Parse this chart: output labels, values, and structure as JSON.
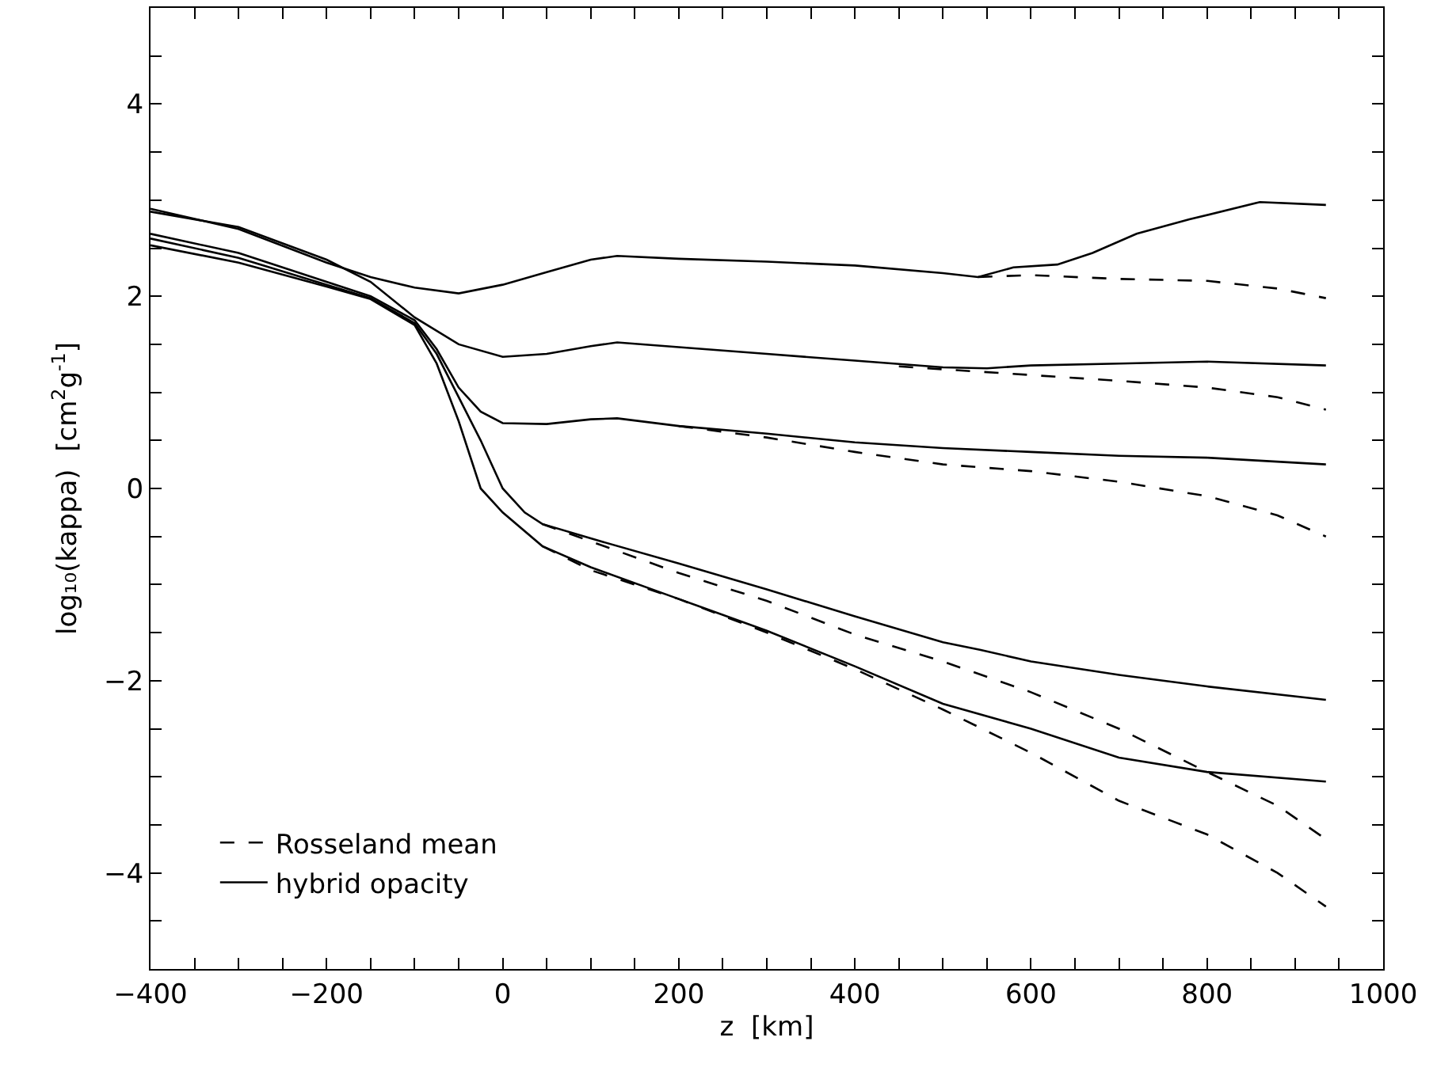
{
  "chart_data": {
    "type": "line",
    "xlabel": "z  [km]",
    "ylabel": "log₁₀(kappa)  [cm$^{2}$g$^{-1}$]",
    "xlim": [
      -400,
      1000
    ],
    "ylim": [
      -5,
      5
    ],
    "xticks": [
      {
        "value": -400,
        "label": "−400"
      },
      {
        "value": -350,
        "label": null
      },
      {
        "value": -300,
        "label": null
      },
      {
        "value": -250,
        "label": null
      },
      {
        "value": -200,
        "label": "−200"
      },
      {
        "value": -150,
        "label": null
      },
      {
        "value": -100,
        "label": null
      },
      {
        "value": -50,
        "label": null
      },
      0,
      {
        "value": 50,
        "label": null
      },
      {
        "value": 100,
        "label": null
      },
      {
        "value": 150,
        "label": null
      },
      200,
      {
        "value": 250,
        "label": null
      },
      {
        "value": 300,
        "label": null
      },
      {
        "value": 350,
        "label": null
      },
      400,
      {
        "value": 450,
        "label": null
      },
      {
        "value": 500,
        "label": null
      },
      {
        "value": 550,
        "label": null
      },
      600,
      {
        "value": 650,
        "label": null
      },
      {
        "value": 700,
        "label": null
      },
      {
        "value": 750,
        "label": null
      },
      800,
      {
        "value": 850,
        "label": null
      },
      {
        "value": 900,
        "label": null
      },
      {
        "value": 950,
        "label": null
      },
      1000
    ],
    "yticks": [
      {
        "value": -4.5,
        "label": null
      },
      {
        "value": -4,
        "label": "−4"
      },
      {
        "value": -3.5,
        "label": null
      },
      {
        "value": -3,
        "label": null
      },
      {
        "value": -2.5,
        "label": null
      },
      {
        "value": -2,
        "label": "−2"
      },
      {
        "value": -1.5,
        "label": null
      },
      {
        "value": -1,
        "label": null
      },
      {
        "value": -0.5,
        "label": null
      },
      0,
      {
        "value": 0.5,
        "label": null
      },
      {
        "value": 1,
        "label": null
      },
      {
        "value": 1.5,
        "label": null
      },
      2,
      {
        "value": 2.5,
        "label": null
      },
      {
        "value": 3,
        "label": null
      },
      {
        "value": 3.5,
        "label": null
      },
      4,
      {
        "value": 4.5,
        "label": null
      }
    ],
    "grid": false,
    "legend": "bottom left",
    "marker": "none",
    "series": [
      {
        "name": "Rosseland mean",
        "color": "#000000",
        "line_style": "dashed",
        "x": [
          540,
          600,
          700,
          800,
          880,
          935
        ],
        "values": [
          2.2,
          2.22,
          2.18,
          2.16,
          2.08,
          1.98
        ]
      },
      {
        "name": "hybrid opacity",
        "color": "#000000",
        "line_style": "solid",
        "x": [
          -400,
          -300,
          -200,
          -150,
          -100,
          -50,
          0,
          50,
          100,
          130,
          200,
          300,
          400,
          500,
          540,
          580,
          630,
          670,
          720,
          780,
          860,
          935
        ],
        "values": [
          2.91,
          2.7,
          2.35,
          2.2,
          2.09,
          2.03,
          2.12,
          2.25,
          2.38,
          2.42,
          2.39,
          2.36,
          2.32,
          2.24,
          2.2,
          2.3,
          2.33,
          2.45,
          2.65,
          2.8,
          2.98,
          2.95
        ]
      },
      {
        "color": "#000000",
        "line_style": "dashed",
        "x": [
          450,
          500,
          600,
          700,
          800,
          880,
          935
        ],
        "values": [
          1.27,
          1.24,
          1.18,
          1.12,
          1.05,
          0.95,
          0.82
        ]
      },
      {
        "color": "#000000",
        "line_style": "solid",
        "x": [
          -400,
          -300,
          -200,
          -150,
          -100,
          -50,
          0,
          50,
          100,
          130,
          200,
          300,
          400,
          500,
          550,
          600,
          700,
          800,
          935
        ],
        "values": [
          2.88,
          2.72,
          2.38,
          2.15,
          1.78,
          1.5,
          1.37,
          1.4,
          1.48,
          1.52,
          1.47,
          1.4,
          1.33,
          1.26,
          1.25,
          1.28,
          1.3,
          1.32,
          1.28
        ]
      },
      {
        "color": "#000000",
        "line_style": "dashed",
        "x": [
          200,
          300,
          400,
          500,
          600,
          700,
          800,
          880,
          935
        ],
        "values": [
          0.65,
          0.53,
          0.38,
          0.25,
          0.18,
          0.07,
          -0.08,
          -0.28,
          -0.5
        ]
      },
      {
        "color": "#000000",
        "line_style": "solid",
        "x": [
          -400,
          -300,
          -200,
          -150,
          -100,
          -75,
          -50,
          -25,
          0,
          50,
          100,
          130,
          200,
          300,
          400,
          500,
          600,
          700,
          800,
          935
        ],
        "values": [
          2.65,
          2.45,
          2.15,
          2.0,
          1.75,
          1.45,
          1.05,
          0.8,
          0.68,
          0.67,
          0.72,
          0.73,
          0.65,
          0.57,
          0.48,
          0.42,
          0.38,
          0.34,
          0.32,
          0.25
        ]
      },
      {
        "color": "#000000",
        "line_style": "dashed",
        "x": [
          45,
          100,
          200,
          300,
          400,
          500,
          600,
          700,
          800,
          880,
          935
        ],
        "values": [
          -0.37,
          -0.55,
          -0.88,
          -1.17,
          -1.52,
          -1.8,
          -2.12,
          -2.5,
          -2.95,
          -3.3,
          -3.65
        ]
      },
      {
        "color": "#000000",
        "line_style": "solid",
        "x": [
          -400,
          -300,
          -200,
          -150,
          -100,
          -75,
          -50,
          -25,
          0,
          25,
          45,
          100,
          200,
          300,
          400,
          500,
          543,
          600,
          700,
          800,
          935
        ],
        "values": [
          2.6,
          2.4,
          2.12,
          1.98,
          1.72,
          1.4,
          0.95,
          0.5,
          0.0,
          -0.25,
          -0.37,
          -0.52,
          -0.78,
          -1.05,
          -1.33,
          -1.6,
          -1.68,
          -1.8,
          -1.94,
          -2.06,
          -2.2
        ]
      },
      {
        "color": "#000000",
        "line_style": "dashed",
        "x": [
          45,
          100,
          200,
          300,
          400,
          500,
          600,
          700,
          800,
          880,
          935
        ],
        "values": [
          -0.6,
          -0.85,
          -1.15,
          -1.5,
          -1.88,
          -2.3,
          -2.75,
          -3.25,
          -3.6,
          -4.0,
          -4.35
        ]
      },
      {
        "color": "#000000",
        "line_style": "solid",
        "x": [
          -400,
          -300,
          -200,
          -150,
          -100,
          -75,
          -50,
          -25,
          0,
          45,
          100,
          200,
          300,
          400,
          500,
          600,
          700,
          800,
          935
        ],
        "values": [
          2.53,
          2.35,
          2.1,
          1.97,
          1.7,
          1.3,
          0.7,
          0.0,
          -0.25,
          -0.6,
          -0.82,
          -1.15,
          -1.48,
          -1.85,
          -2.24,
          -2.5,
          -2.8,
          -2.95,
          -3.05
        ]
      }
    ]
  }
}
